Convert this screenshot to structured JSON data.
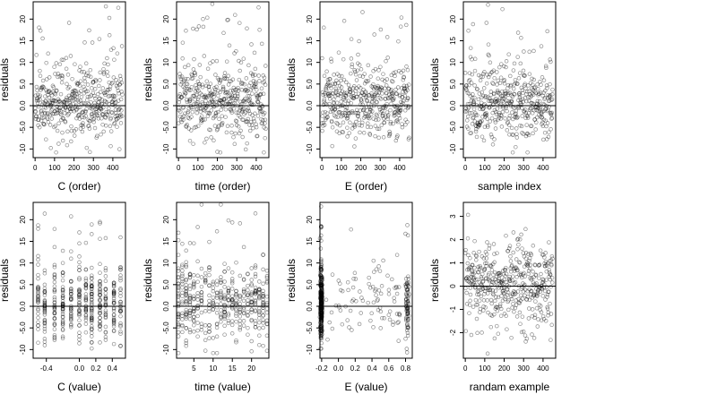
{
  "chart_data": [
    {
      "type": "scatter",
      "xlabel": "C (order)",
      "ylabel": "residuals",
      "xlim": [
        -10,
        465
      ],
      "ylim": [
        -12,
        24
      ],
      "xticks": [
        0,
        100,
        200,
        300,
        400
      ],
      "yticks": [
        -10,
        -5,
        0,
        5,
        10,
        15,
        20
      ],
      "ytick_labels": [
        "-10",
        "-5.0",
        "0.0",
        "5.0",
        "10",
        "15",
        "20"
      ],
      "hline": 0,
      "pattern": "order",
      "seed": 11
    },
    {
      "type": "scatter",
      "xlabel": "time (order)",
      "ylabel": "residuals",
      "xlim": [
        -10,
        465
      ],
      "ylim": [
        -12,
        24
      ],
      "xticks": [
        0,
        100,
        200,
        300,
        400
      ],
      "yticks": [
        -10,
        -5,
        0,
        5,
        10,
        15,
        20
      ],
      "ytick_labels": [
        "-10",
        "-5.0",
        "0.0",
        "5.0",
        "10",
        "15",
        "20"
      ],
      "hline": 0,
      "pattern": "order",
      "seed": 23
    },
    {
      "type": "scatter",
      "xlabel": "E (order)",
      "ylabel": "residuals",
      "xlim": [
        -10,
        465
      ],
      "ylim": [
        -12,
        24
      ],
      "xticks": [
        0,
        100,
        200,
        300,
        400
      ],
      "yticks": [
        -10,
        -5,
        0,
        5,
        10,
        15,
        20
      ],
      "ytick_labels": [
        "-10",
        "-5.0",
        "0.0",
        "5.0",
        "10",
        "15",
        "20"
      ],
      "hline": 0,
      "pattern": "order",
      "seed": 37
    },
    {
      "type": "scatter",
      "xlabel": "sample index",
      "ylabel": "residuals",
      "xlim": [
        -10,
        465
      ],
      "ylim": [
        -12,
        24
      ],
      "xticks": [
        0,
        100,
        200,
        300,
        400
      ],
      "yticks": [
        -10,
        -5,
        0,
        5,
        10,
        15,
        20
      ],
      "ytick_labels": [
        "-10",
        "-5.0",
        "0.0",
        "5.0",
        "10",
        "15",
        "20"
      ],
      "hline": 0,
      "pattern": "order",
      "seed": 41
    },
    {
      "type": "scatter",
      "xlabel": "C (value)",
      "ylabel": "residuals",
      "xlim": [
        -0.56,
        0.56
      ],
      "ylim": [
        -12,
        24
      ],
      "xticks": [
        -0.4,
        0.0,
        0.2,
        0.4
      ],
      "xtick_labels": [
        "-0.4",
        "0.0",
        "0.2",
        "0.4"
      ],
      "yticks": [
        -10,
        -5,
        0,
        5,
        10,
        15,
        20
      ],
      "ytick_labels": [
        "-10",
        "-5.0",
        "0.0",
        "5.0",
        "10",
        "15",
        "20"
      ],
      "hline": 0,
      "pattern": "levels",
      "levels": [
        -0.5,
        -0.42,
        -0.3,
        -0.2,
        -0.1,
        0.0,
        0.08,
        0.15,
        0.25,
        0.32,
        0.42,
        0.5
      ],
      "seed": 53
    },
    {
      "type": "scatter",
      "xlabel": "time (value)",
      "ylabel": "residuals",
      "xlim": [
        0.5,
        24.5
      ],
      "ylim": [
        -12,
        24
      ],
      "xticks": [
        5,
        10,
        15,
        20
      ],
      "yticks": [
        -10,
        -5,
        0,
        5,
        10,
        15,
        20
      ],
      "ytick_labels": [
        "-10",
        "-5.0",
        "0.0",
        "5.0",
        "10",
        "15",
        "20"
      ],
      "hline": 0,
      "pattern": "levels",
      "levels": [
        1,
        2,
        3,
        4,
        5,
        6,
        7,
        8,
        9,
        10,
        11,
        12,
        13,
        14,
        15,
        16,
        17,
        18,
        19,
        20,
        21,
        22,
        23,
        24
      ],
      "seed": 67
    },
    {
      "type": "scatter",
      "xlabel": "E (value)",
      "ylabel": "residuals",
      "xlim": [
        -0.22,
        0.88
      ],
      "ylim": [
        -12,
        24
      ],
      "xticks": [
        -0.2,
        0.0,
        0.2,
        0.4,
        0.6,
        0.8
      ],
      "xtick_labels": [
        "-0.2",
        "0.0",
        "0.2",
        "0.4",
        "0.6",
        "0.8"
      ],
      "yticks": [
        -10,
        -5,
        0,
        5,
        10,
        15,
        20
      ],
      "ytick_labels": [
        "-10",
        "-5.0",
        "0.0",
        "5.0",
        "10",
        "15",
        "20"
      ],
      "hline": 0,
      "pattern": "clustered",
      "seed": 79
    },
    {
      "type": "scatter",
      "xlabel": "randam example",
      "ylabel": "residuals",
      "xlim": [
        -10,
        465
      ],
      "ylim": [
        -3.1,
        3.6
      ],
      "xticks": [
        0,
        100,
        200,
        300,
        400
      ],
      "yticks": [
        -2,
        -1,
        0,
        1,
        2,
        3
      ],
      "ytick_labels": [
        "-2",
        "-1",
        "0",
        "1",
        "2",
        "3"
      ],
      "hline": 0,
      "pattern": "normal",
      "seed": 97
    }
  ]
}
